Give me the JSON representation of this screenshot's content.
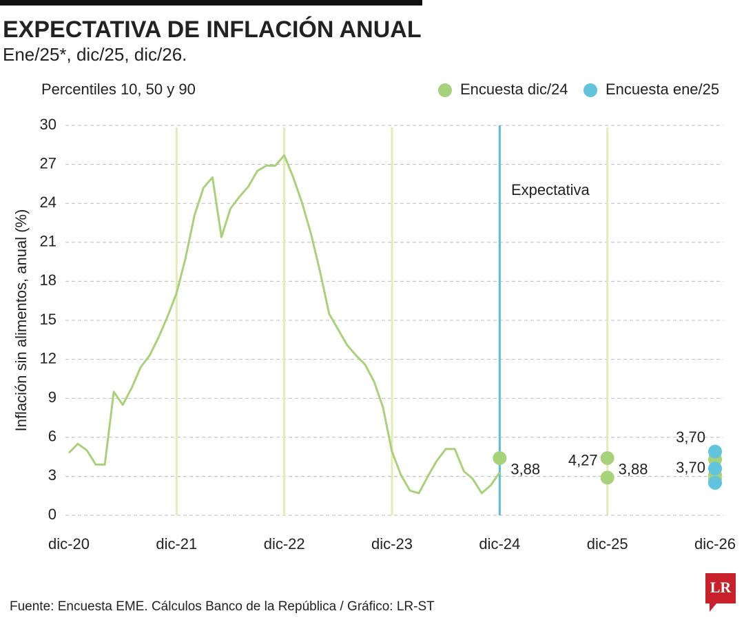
{
  "chart_data": {
    "type": "line",
    "title": "EXPECTATIVA DE INFLACIÓN ANUAL",
    "subtitle": "Ene/25*, dic/25, dic/26.",
    "note": "Percentiles 10, 50 y 90",
    "ylabel": "Inflación sin alimentos, anual (%)",
    "source": "Fuente: Encuesta EME. Cálculos Banco de la República / Gráfico: LR-ST",
    "logo": "LR",
    "annotation": "Expectativa",
    "xlim": [
      0,
      72
    ],
    "xticks": [
      {
        "value": 0,
        "label": "dic-20"
      },
      {
        "value": 12,
        "label": "dic-21"
      },
      {
        "value": 24,
        "label": "dic-22"
      },
      {
        "value": 36,
        "label": "dic-23"
      },
      {
        "value": 48,
        "label": "dic-24"
      },
      {
        "value": 60,
        "label": "dic-25"
      },
      {
        "value": 72,
        "label": "dic-26"
      }
    ],
    "ylim": [
      0,
      30
    ],
    "yticks": [
      0,
      3,
      6,
      9,
      12,
      15,
      18,
      21,
      24,
      27,
      30
    ],
    "grid": true,
    "vlines": [
      12,
      24,
      36,
      60
    ],
    "vline_color": "#e3ecb4",
    "expectation_line": 48,
    "expectation_color": "#5bbcd8",
    "line": {
      "color": "#a8d279",
      "x": [
        0,
        1,
        2,
        3,
        4,
        5,
        6,
        7,
        8,
        9,
        10,
        11,
        12,
        13,
        14,
        15,
        16,
        17,
        18,
        19,
        20,
        21,
        22,
        23,
        24,
        25,
        26,
        27,
        28,
        29,
        30,
        31,
        32,
        33,
        34,
        35,
        36,
        37,
        38,
        39,
        40,
        41,
        42,
        43,
        44,
        45,
        46,
        47,
        48
      ],
      "values": [
        4.8,
        5.5,
        5.0,
        3.9,
        3.9,
        9.5,
        8.5,
        9.8,
        11.4,
        12.3,
        13.7,
        15.3,
        17.1,
        19.8,
        23.1,
        25.2,
        26.0,
        21.4,
        23.6,
        24.5,
        25.3,
        26.5,
        26.9,
        26.9,
        27.7,
        26.0,
        24.0,
        21.6,
        18.7,
        15.5,
        14.3,
        13.1,
        12.3,
        11.6,
        10.3,
        8.3,
        4.9,
        3.1,
        1.9,
        1.7,
        3.0,
        4.2,
        5.1,
        5.1,
        3.4,
        2.8,
        1.7,
        2.3,
        3.3
      ]
    },
    "series": [
      {
        "name": "Encuesta dic/24",
        "color": "#a8d279",
        "x": [
          48,
          60,
          60,
          72,
          72,
          72
        ],
        "values": [
          4.4,
          4.4,
          2.9,
          4.3,
          3.1,
          2.8
        ]
      },
      {
        "name": "Encuesta ene/25",
        "color": "#62c3dc",
        "x": [
          72,
          72,
          72
        ],
        "values": [
          4.9,
          3.6,
          2.5
        ]
      }
    ],
    "value_labels": [
      {
        "text": "3,88",
        "x": 48,
        "y": 3.88
      },
      {
        "text": "4,27",
        "x": 60,
        "y": 4.27
      },
      {
        "text": "3,88",
        "x": 60,
        "y": 3.88
      },
      {
        "text": "3,70",
        "x": 72,
        "y": 3.7
      },
      {
        "text": "3,70",
        "x": 72,
        "y": 3.7
      }
    ]
  }
}
